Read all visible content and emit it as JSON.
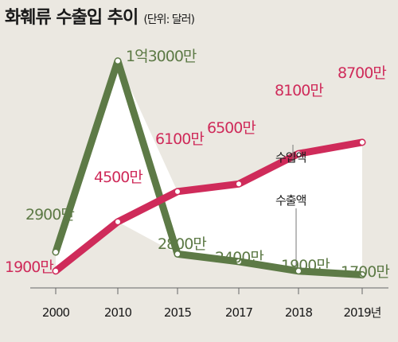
{
  "title": "화훼류 수출입 추이",
  "unit": "(단위: 달러)",
  "colors": {
    "background": "#ebe8e1",
    "plot_area": "#ffffff",
    "import": "#cf2b5a",
    "export": "#5d7a46",
    "axis": "#666666",
    "text": "#1a1a1a"
  },
  "chart_data": {
    "type": "line",
    "title": "화훼류 수출입 추이",
    "unit": "(단위: 달러)",
    "categories": [
      "2000",
      "2010",
      "2015",
      "2017",
      "2018",
      "2019년"
    ],
    "series": [
      {
        "name": "수입액",
        "values": [
          1900,
          4500,
          6100,
          6500,
          8100,
          8700
        ],
        "labels": [
          "1900만",
          "4500만",
          "6100만",
          "6500만",
          "8100만",
          "8700만"
        ]
      },
      {
        "name": "수출액",
        "values": [
          2900,
          13000,
          2800,
          2400,
          1900,
          1700
        ],
        "labels": [
          "2900만",
          "1억3000만",
          "2800만",
          "2400만",
          "1900만",
          "1700만"
        ]
      }
    ],
    "ylim": [
      0,
      14000
    ]
  }
}
